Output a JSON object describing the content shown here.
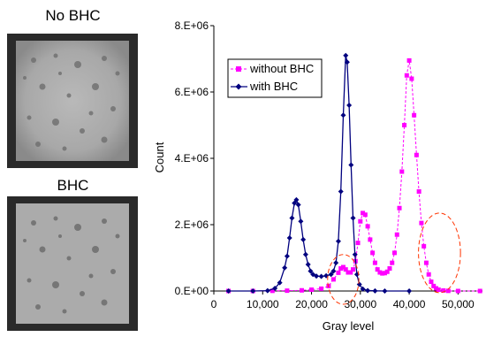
{
  "images": [
    {
      "title": "No BHC"
    },
    {
      "title": "BHC"
    }
  ],
  "colors": {
    "without_bhc": "#ff00ff",
    "with_bhc": "#00007f",
    "highlight_ellipse": "#ff3300"
  },
  "chart_data": {
    "type": "line",
    "xlabel": "Gray level",
    "ylabel": "Count",
    "xlim": [
      0,
      55000
    ],
    "ylim": [
      0,
      8000000
    ],
    "x_ticks": [
      0,
      10000,
      20000,
      30000,
      40000,
      50000
    ],
    "x_tick_labels": [
      "0",
      "10,000",
      "20,000",
      "30,000",
      "40,000",
      "50,000"
    ],
    "y_ticks": [
      0,
      2000000,
      4000000,
      6000000,
      8000000
    ],
    "y_tick_labels": [
      "0.E+00",
      "2.E+06",
      "4.E+06",
      "6.E+06",
      "8.E+06"
    ],
    "legend_position": "top-left",
    "series": [
      {
        "name": "without BHC",
        "color": "#ff00ff",
        "marker": "square",
        "line": "dashed",
        "points": [
          [
            3000,
            0
          ],
          [
            8000,
            0
          ],
          [
            12000,
            5000
          ],
          [
            15000,
            10000
          ],
          [
            18000,
            20000
          ],
          [
            20000,
            40000
          ],
          [
            22000,
            70000
          ],
          [
            23500,
            150000
          ],
          [
            24500,
            350000
          ],
          [
            25500,
            550000
          ],
          [
            26000,
            680000
          ],
          [
            26500,
            720000
          ],
          [
            27000,
            650000
          ],
          [
            27500,
            560000
          ],
          [
            28000,
            560000
          ],
          [
            28500,
            650000
          ],
          [
            29000,
            900000
          ],
          [
            29500,
            1450000
          ],
          [
            30000,
            2100000
          ],
          [
            30500,
            2350000
          ],
          [
            31000,
            2300000
          ],
          [
            31500,
            1950000
          ],
          [
            32000,
            1550000
          ],
          [
            32500,
            1150000
          ],
          [
            33000,
            850000
          ],
          [
            33500,
            650000
          ],
          [
            34000,
            560000
          ],
          [
            34500,
            530000
          ],
          [
            35000,
            540000
          ],
          [
            35500,
            580000
          ],
          [
            36000,
            680000
          ],
          [
            36500,
            850000
          ],
          [
            37000,
            1150000
          ],
          [
            37500,
            1700000
          ],
          [
            38000,
            2500000
          ],
          [
            38500,
            3600000
          ],
          [
            39000,
            5000000
          ],
          [
            39500,
            6500000
          ],
          [
            40000,
            6950000
          ],
          [
            40500,
            6400000
          ],
          [
            41000,
            5300000
          ],
          [
            41500,
            4100000
          ],
          [
            42000,
            3000000
          ],
          [
            42500,
            2050000
          ],
          [
            43000,
            1350000
          ],
          [
            43500,
            850000
          ],
          [
            44000,
            500000
          ],
          [
            44500,
            280000
          ],
          [
            45000,
            150000
          ],
          [
            45500,
            80000
          ],
          [
            46000,
            40000
          ],
          [
            47000,
            15000
          ],
          [
            48000,
            5000
          ],
          [
            50000,
            0
          ],
          [
            54500,
            0
          ]
        ]
      },
      {
        "name": "with BHC",
        "color": "#00007f",
        "marker": "diamond",
        "line": "solid",
        "points": [
          [
            3000,
            0
          ],
          [
            8000,
            0
          ],
          [
            11000,
            10000
          ],
          [
            12500,
            80000
          ],
          [
            13500,
            250000
          ],
          [
            14500,
            700000
          ],
          [
            15000,
            1050000
          ],
          [
            15500,
            1600000
          ],
          [
            16000,
            2200000
          ],
          [
            16500,
            2650000
          ],
          [
            16900,
            2750000
          ],
          [
            17300,
            2600000
          ],
          [
            17800,
            2100000
          ],
          [
            18300,
            1550000
          ],
          [
            18800,
            1100000
          ],
          [
            19300,
            800000
          ],
          [
            19800,
            600000
          ],
          [
            20300,
            500000
          ],
          [
            21000,
            450000
          ],
          [
            22000,
            440000
          ],
          [
            23000,
            460000
          ],
          [
            24000,
            500000
          ],
          [
            24500,
            600000
          ],
          [
            25000,
            850000
          ],
          [
            25500,
            1500000
          ],
          [
            26000,
            3000000
          ],
          [
            26500,
            5300000
          ],
          [
            27000,
            7100000
          ],
          [
            27300,
            6900000
          ],
          [
            27700,
            5600000
          ],
          [
            28100,
            3800000
          ],
          [
            28500,
            2200000
          ],
          [
            28900,
            1100000
          ],
          [
            29300,
            500000
          ],
          [
            29800,
            200000
          ],
          [
            30500,
            60000
          ],
          [
            31500,
            15000
          ],
          [
            33000,
            5000
          ],
          [
            35000,
            0
          ],
          [
            40000,
            0
          ]
        ]
      }
    ],
    "annotations": [
      {
        "type": "dashed-ellipse",
        "center": [
          26500,
          350000
        ],
        "rx": 3200,
        "ry": 750000
      },
      {
        "type": "dashed-ellipse",
        "center": [
          46200,
          1150000
        ],
        "rx": 4300,
        "ry": 1200000
      }
    ]
  }
}
